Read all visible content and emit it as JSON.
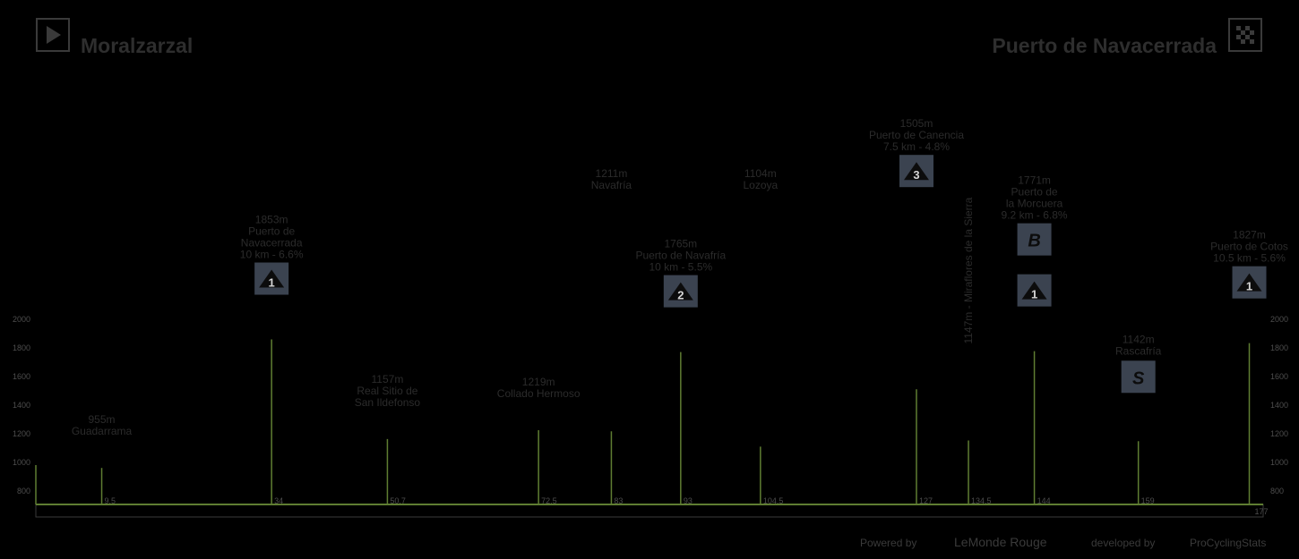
{
  "stage": {
    "start": "Moralzarzal",
    "finish": "Puerto de Navacerrada",
    "start_icon": "play-flag-icon",
    "finish_icon": "checkered-flag-icon"
  },
  "footer": {
    "powered_by": "Powered by",
    "brand": "LeMonde Rouge",
    "made_by": "developed by",
    "credit": "ProCyclingStats"
  },
  "colors": {
    "profile_line": "#5f7d32",
    "label": "#2b2b2b",
    "badge": "#3b4350",
    "tick": "#4d4d4d"
  },
  "chart_data": {
    "type": "line",
    "title": "",
    "xlabel": "",
    "ylabel": "",
    "xlim": [
      0,
      177
    ],
    "ylim": [
      700,
      2000
    ],
    "y_ticks": [
      "800",
      "1000",
      "1200",
      "1400",
      "1600",
      "1800",
      "2000"
    ],
    "x_end_label": "177",
    "points": [
      {
        "km": 9.5,
        "km_label": "9.5",
        "alt": 955,
        "label": [
          "955m",
          "Guadarrama"
        ],
        "badge": ""
      },
      {
        "km": 34,
        "km_label": "34",
        "alt": 1853,
        "label": [
          "1853m",
          "Puerto de",
          "Navacerrada",
          "10 km - 6.6%"
        ],
        "badge": "1"
      },
      {
        "km": 50.7,
        "km_label": "50.7",
        "alt": 1157,
        "label": [
          "1157m",
          "Real Sitio de",
          "San Ildefonso"
        ],
        "badge": ""
      },
      {
        "km": 72.5,
        "km_label": "72.5",
        "alt": 1219,
        "label": [
          "1219m",
          "Collado Hermoso"
        ],
        "badge": ""
      },
      {
        "km": 83,
        "km_label": "83",
        "alt": 1211,
        "label": [
          "1211m",
          "Navafría"
        ],
        "badge": ""
      },
      {
        "km": 93,
        "km_label": "93",
        "alt": 1765,
        "label": [
          "1765m",
          "Puerto de Navafría",
          "10 km - 5.5%"
        ],
        "badge": "2"
      },
      {
        "km": 104.5,
        "km_label": "104.5",
        "alt": 1104,
        "label": [
          "1104m",
          "Lozoya"
        ],
        "badge": ""
      },
      {
        "km": 127,
        "km_label": "127",
        "alt": 1505,
        "label": [
          "1505m",
          "Puerto de Canencia",
          "7.5 km - 4.8%"
        ],
        "badge": "3"
      },
      {
        "km": 134.5,
        "km_label": "134.5",
        "alt": 1147,
        "label": [
          "1147m - Miraflores de la Sierra"
        ],
        "badge": "",
        "rotated": true
      },
      {
        "km": 144,
        "km_label": "144",
        "alt": 1771,
        "label": [
          "1771m",
          "Puerto de",
          "la Morcuera",
          "9.2 km - 6.8%"
        ],
        "badge": "1",
        "bonus": "B"
      },
      {
        "km": 159,
        "km_label": "159",
        "alt": 1142,
        "label": [
          "1142m",
          "Rascafría"
        ],
        "badge": "",
        "sprint": "S"
      },
      {
        "km": 175,
        "km_label": "",
        "alt": 1827,
        "label": [
          "1827m",
          "Puerto de Cotos",
          "10.5 km - 5.6%"
        ],
        "badge": "1"
      }
    ]
  }
}
